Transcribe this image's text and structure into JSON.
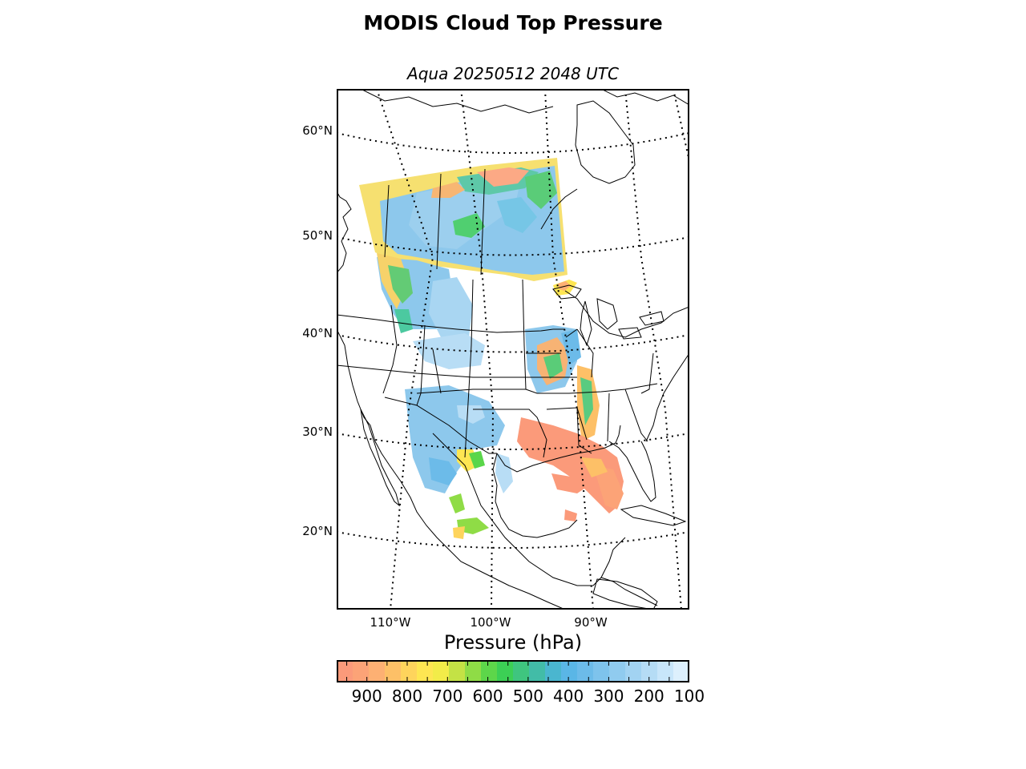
{
  "figure": {
    "title": "MODIS Cloud Top Pressure",
    "subtitle": "Aqua 20250512 2048 UTC"
  },
  "map": {
    "lat_labels": [
      "60°N",
      "50°N",
      "40°N",
      "30°N",
      "20°N"
    ],
    "lon_labels": [
      "110°W",
      "100°W",
      "90°W"
    ],
    "graticule_style": "dotted",
    "projection": "Lambert conformal",
    "extent": {
      "lon_min": -120,
      "lon_max": -75,
      "lat_min": 12,
      "lat_max": 64
    }
  },
  "colorbar": {
    "label": "Pressure (hPa)",
    "ticks": [
      "900",
      "800",
      "700",
      "600",
      "500",
      "400",
      "300",
      "200",
      "100"
    ],
    "range_hpa": [
      975,
      100
    ],
    "colors": [
      "#fb9a7a",
      "#fca377",
      "#fdb073",
      "#fdc067",
      "#fed45c",
      "#fee652",
      "#f2ec49",
      "#c4e245",
      "#8fdc46",
      "#5dd64a",
      "#3ccf55",
      "#3fc57f",
      "#42bca7",
      "#4ab6cf",
      "#5ab6e6",
      "#6cbbe9",
      "#7ec3ec",
      "#90cbef",
      "#a2d3f2",
      "#b5dcf5",
      "#c8e6fa",
      "#ddf0fd"
    ]
  },
  "chart_data": {
    "type": "heatmap",
    "title": "MODIS Cloud Top Pressure",
    "subtitle": "Aqua 20250512 2048 UTC",
    "colorbar_label": "Pressure (hPa)",
    "colorbar_ticks": [
      900,
      800,
      700,
      600,
      500,
      400,
      300,
      200,
      100
    ],
    "value_range": [
      975,
      100
    ]
  }
}
